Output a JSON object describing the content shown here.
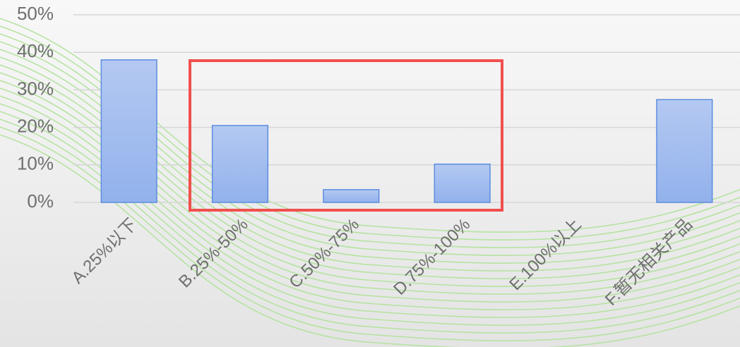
{
  "chart_data": {
    "type": "bar",
    "categories": [
      "A.25%以下",
      "B.25%-50%",
      "C.50%-75%",
      "D.75%-100%",
      "E.100%以上",
      "F.暂无相关产品"
    ],
    "values": [
      38,
      20.5,
      3.4,
      10.2,
      0,
      27.4
    ],
    "color": "#9db8ee",
    "ylim": [
      0,
      50
    ],
    "yticks": [
      {
        "value": 0,
        "label": "0%"
      },
      {
        "value": 10,
        "label": "10%"
      },
      {
        "value": 20,
        "label": "20%"
      },
      {
        "value": 30,
        "label": "30%"
      },
      {
        "value": 40,
        "label": "40%"
      },
      {
        "value": 50,
        "label": "50%"
      }
    ],
    "grid": true
  }
}
